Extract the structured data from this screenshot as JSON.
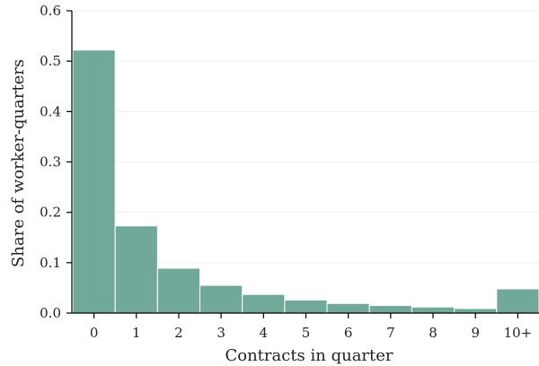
{
  "chart_data": {
    "type": "bar",
    "categories": [
      "0",
      "1",
      "2",
      "3",
      "4",
      "5",
      "6",
      "7",
      "8",
      "9",
      "10+"
    ],
    "values": [
      0.522,
      0.173,
      0.089,
      0.055,
      0.037,
      0.026,
      0.019,
      0.015,
      0.012,
      0.009,
      0.048
    ],
    "xlabel": "Contracts in quarter",
    "ylabel": "Share of worker-quarters",
    "ylim": [
      0,
      0.6
    ],
    "yticks": [
      "0.0",
      "0.1",
      "0.2",
      "0.3",
      "0.4",
      "0.5",
      "0.6"
    ],
    "grid": true,
    "colors": {
      "bar": "#70a99a"
    }
  }
}
